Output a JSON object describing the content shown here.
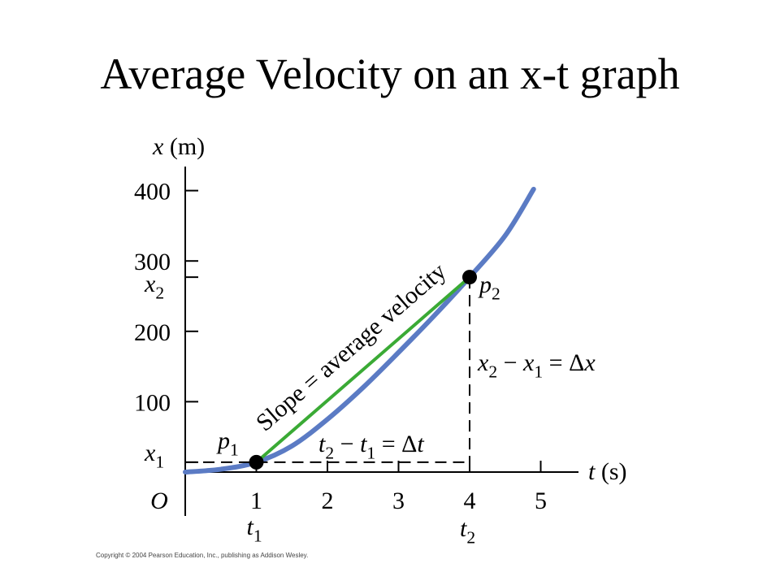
{
  "title": "Average Velocity on an x-t graph",
  "copyright": "Copyright © 2004 Pearson Education, Inc., publishing as Addison Wesley.",
  "colors": {
    "curve": "#5b7bc4",
    "secant": "#3aaa35",
    "ink": "#000000"
  },
  "chart_data": {
    "type": "line",
    "xlabel_var": "t",
    "xlabel_unit": "(s)",
    "ylabel_var": "x",
    "ylabel_unit": "(m)",
    "xlim": [
      0,
      5.5
    ],
    "ylim": [
      0,
      430
    ],
    "x_ticks": [
      1,
      2,
      3,
      4,
      5
    ],
    "y_ticks": [
      100,
      200,
      300,
      400
    ],
    "origin_label": "O",
    "series": [
      {
        "values": [
          {
            "t": 0,
            "x": 0
          },
          {
            "t": 0.5,
            "x": 4
          },
          {
            "t": 1,
            "x": 14
          },
          {
            "t": 1.5,
            "x": 37
          },
          {
            "t": 2,
            "x": 75
          },
          {
            "t": 2.5,
            "x": 120
          },
          {
            "t": 3,
            "x": 170
          },
          {
            "t": 3.5,
            "x": 222
          },
          {
            "t": 4,
            "x": 277
          },
          {
            "t": 4.5,
            "x": 336
          },
          {
            "t": 4.9,
            "x": 402
          }
        ]
      }
    ],
    "points": [
      {
        "label": "p",
        "sub": "1",
        "t": 1,
        "x": 14
      },
      {
        "label": "p",
        "sub": "2",
        "t": 4,
        "x": 277
      }
    ],
    "marked_t": [
      {
        "label": "t",
        "sub": "1",
        "t": 1
      },
      {
        "label": "t",
        "sub": "2",
        "t": 4
      }
    ],
    "marked_x": [
      {
        "label": "x",
        "sub": "1",
        "x": 14
      },
      {
        "label": "x",
        "sub": "2",
        "x": 277
      }
    ],
    "annotations": {
      "slope": "Slope = average velocity",
      "delta_t": {
        "a": "t",
        "a_sub": "2",
        "op": " − ",
        "b": "t",
        "b_sub": "1",
        "eq": " = Δ",
        "v": "t"
      },
      "delta_x": {
        "a": "x",
        "a_sub": "2",
        "op": " − ",
        "b": "x",
        "b_sub": "1",
        "eq": " = Δ",
        "v": "x"
      }
    }
  }
}
